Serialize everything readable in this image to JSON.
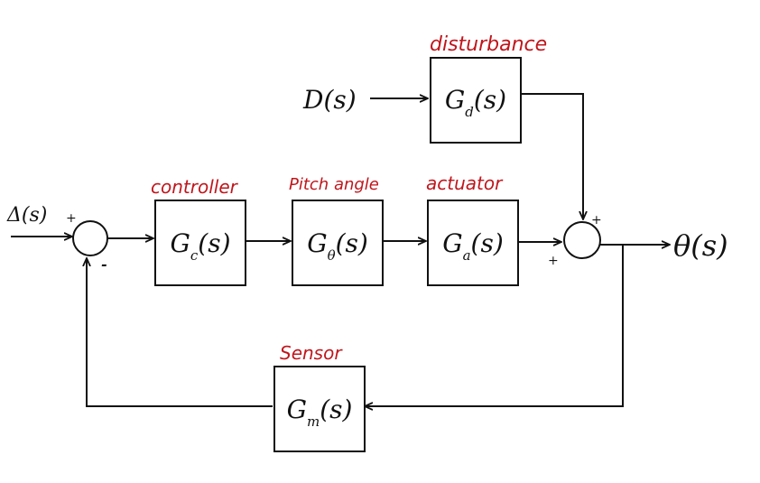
{
  "colors": {
    "ink": "#111111",
    "annotation": "#c0161c",
    "background": "#ffffff"
  },
  "signals": {
    "reference": "Δ(s)",
    "disturbance_input": "D(s)",
    "output": "θ(s)"
  },
  "blocks": {
    "disturbance": {
      "label": "disturbance",
      "tf": "Gd(s)",
      "tf_main": "G",
      "tf_sub": "d",
      "tf_arg": "(s)"
    },
    "controller": {
      "label": "controller",
      "tf": "Gc(s)",
      "tf_main": "G",
      "tf_sub": "c",
      "tf_arg": "(s)"
    },
    "pitch": {
      "label": "Pitch angle",
      "tf": "Gθ(s)",
      "tf_main": "G",
      "tf_sub": "θ",
      "tf_arg": "(s)"
    },
    "actuator": {
      "label": "actuator",
      "tf": "Ga(s)",
      "tf_main": "G",
      "tf_sub": "a",
      "tf_arg": "(s)"
    },
    "sensor": {
      "label": "Sensor",
      "tf": "Gm(s)",
      "tf_main": "G",
      "tf_sub": "m",
      "tf_arg": "(s)"
    }
  },
  "summing_junctions": {
    "input": {
      "plus": "+",
      "minus": "-"
    },
    "output": {
      "plus_top": "+",
      "plus_left": "+"
    }
  }
}
